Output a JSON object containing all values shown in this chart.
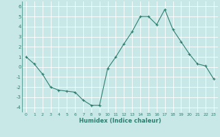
{
  "x": [
    0,
    1,
    2,
    3,
    4,
    5,
    6,
    7,
    8,
    9,
    10,
    11,
    12,
    13,
    14,
    15,
    16,
    17,
    18,
    19,
    20,
    21,
    22,
    23
  ],
  "y": [
    1.0,
    0.3,
    -0.7,
    -2.0,
    -2.3,
    -2.4,
    -2.5,
    -3.3,
    -3.8,
    -3.8,
    -0.15,
    1.0,
    2.3,
    3.5,
    5.0,
    5.0,
    4.2,
    5.7,
    3.7,
    2.5,
    1.3,
    0.3,
    0.1,
    -1.2
  ],
  "xlabel": "Humidex (Indice chaleur)",
  "xlim": [
    -0.5,
    23.5
  ],
  "ylim": [
    -4.5,
    6.5
  ],
  "yticks": [
    -4,
    -3,
    -2,
    -1,
    0,
    1,
    2,
    3,
    4,
    5,
    6
  ],
  "xticks": [
    0,
    1,
    2,
    3,
    4,
    5,
    6,
    7,
    8,
    9,
    10,
    11,
    12,
    13,
    14,
    15,
    16,
    17,
    18,
    19,
    20,
    21,
    22,
    23
  ],
  "line_color": "#2e7d6e",
  "marker": "+",
  "bg_color": "#c8e8e8",
  "grid_color": "#ffffff",
  "plot_bg": "#c8e8e8",
  "tick_color": "#2e7d6e",
  "label_color": "#2e7d6e"
}
